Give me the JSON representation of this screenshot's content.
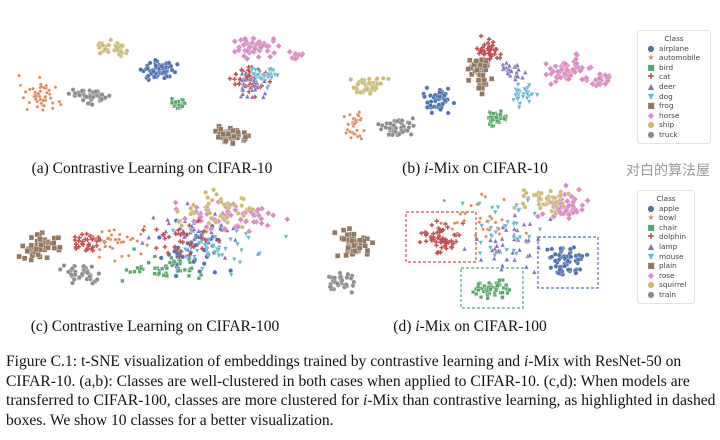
{
  "panels": [
    {
      "id": "a",
      "caption": "(a) Contrastive Learning on CIFAR-10"
    },
    {
      "id": "b",
      "caption_prefix": "i",
      "caption": "-Mix on CIFAR-10"
    },
    {
      "id": "c",
      "caption": "(c) Contrastive Learning on CIFAR-100"
    },
    {
      "id": "d",
      "caption_prefix": "i",
      "caption": "-Mix on CIFAR-100"
    }
  ],
  "legend_cifar10": {
    "title": "Class",
    "items": [
      "airplane",
      "automobile",
      "bird",
      "cat",
      "deer",
      "dog",
      "frog",
      "horse",
      "ship",
      "truck"
    ]
  },
  "legend_cifar100": {
    "title": "Class",
    "items": [
      "apple",
      "bowl",
      "chair",
      "dolphin",
      "lamp",
      "mouse",
      "plain",
      "rose",
      "squirrel",
      "train"
    ]
  },
  "class_colors": [
    "#4c72b0",
    "#dd8452",
    "#55a868",
    "#c44e52",
    "#8172b3",
    "#64b5cd",
    "#937860",
    "#da8bc3",
    "#ccb974",
    "#8c8c8c"
  ],
  "class_markers": [
    "circle",
    "star",
    "x-square",
    "plus",
    "triangle-up",
    "triangle-down",
    "square",
    "diamond",
    "circle",
    "circle"
  ],
  "highlight_box_colors": [
    "#c44e52",
    "#55a868",
    "#4c72b0"
  ],
  "caption": {
    "label": "Figure C.1:",
    "part1": " t-SNE visualization of embeddings trained by contrastive learning and ",
    "i1": "i",
    "part2": "-Mix with ResNet-50 on CIFAR-10. (a,b): Classes are well-clustered in both cases when applied to CIFAR-10. (c,d): When models are transferred to CIFAR-100, classes are more clustered for ",
    "i2": "i",
    "part3": "-Mix than contrastive learning, as highlighted in dashed boxes. We show 10 classes for a better visualization."
  },
  "watermark": "对白的算法屋"
}
